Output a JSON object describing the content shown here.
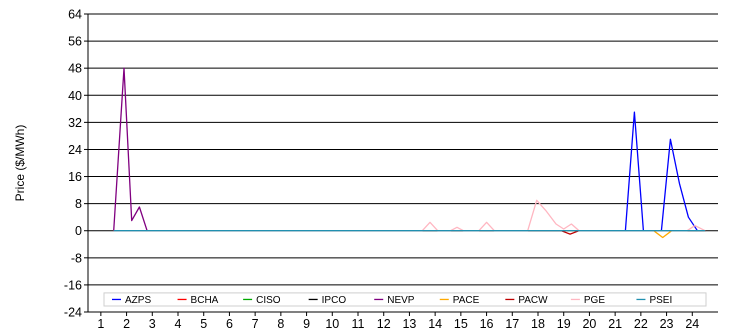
{
  "chart_data": {
    "type": "line",
    "title": "",
    "xlabel": "",
    "ylabel": "Price ($/MWh)",
    "ylim": [
      -24,
      64
    ],
    "xlim": [
      0.5,
      25
    ],
    "yticks": [
      -24,
      -16,
      -8,
      0,
      8,
      16,
      24,
      32,
      40,
      48,
      56,
      64
    ],
    "xticks": [
      1,
      2,
      3,
      4,
      5,
      6,
      7,
      8,
      9,
      10,
      11,
      12,
      13,
      14,
      15,
      16,
      17,
      18,
      19,
      20,
      21,
      22,
      23,
      24
    ],
    "grid": "horizontal",
    "legend_position": "bottom",
    "series": [
      {
        "name": "AZPS",
        "color": "#0000ff",
        "x": [
          1.5,
          21.4,
          21.75,
          22.1,
          22.4,
          22.8,
          23.15,
          23.5,
          23.85,
          24.2,
          24.5
        ],
        "y": [
          0,
          0,
          35,
          0,
          0,
          0,
          27,
          14,
          4,
          0,
          0
        ]
      },
      {
        "name": "BCHA",
        "color": "#ff0000",
        "x": [
          1.5,
          24.5
        ],
        "y": [
          0,
          0
        ]
      },
      {
        "name": "CISO",
        "color": "#00aa00",
        "x": [
          1.5,
          24.5
        ],
        "y": [
          0,
          0
        ]
      },
      {
        "name": "IPCO",
        "color": "#000000",
        "x": [
          1.5,
          24.5
        ],
        "y": [
          0,
          0
        ]
      },
      {
        "name": "NEVP",
        "color": "#800080",
        "x": [
          1.5,
          1.9,
          2.2,
          2.5,
          2.8,
          3.1,
          24.5
        ],
        "y": [
          0,
          48,
          3,
          7,
          0,
          0,
          0
        ]
      },
      {
        "name": "PACE",
        "color": "#ffaa00",
        "x": [
          1.5,
          22.5,
          22.85,
          23.2,
          24.5
        ],
        "y": [
          0,
          0,
          -2,
          0,
          0
        ]
      },
      {
        "name": "PACW",
        "color": "#c00000",
        "x": [
          1.5,
          18.9,
          19.25,
          19.6,
          24.5
        ],
        "y": [
          0,
          0,
          -1,
          0,
          0
        ]
      },
      {
        "name": "PGE",
        "color": "#ffb6c1",
        "x": [
          1.5,
          13.5,
          13.8,
          14.1,
          14.6,
          14.85,
          15.1,
          15.7,
          16.0,
          16.3,
          17.6,
          17.95,
          18.3,
          18.7,
          19.0,
          19.3,
          19.6,
          23.8,
          24.1,
          24.5
        ],
        "y": [
          0,
          0,
          2.5,
          0,
          0,
          1,
          0,
          0,
          2.5,
          0,
          0,
          9,
          6,
          2,
          0.5,
          2,
          0,
          0,
          1.5,
          0
        ]
      },
      {
        "name": "PSEI",
        "color": "#2090b0",
        "x": [
          1.5,
          24.5
        ],
        "y": [
          0,
          0
        ]
      }
    ]
  }
}
